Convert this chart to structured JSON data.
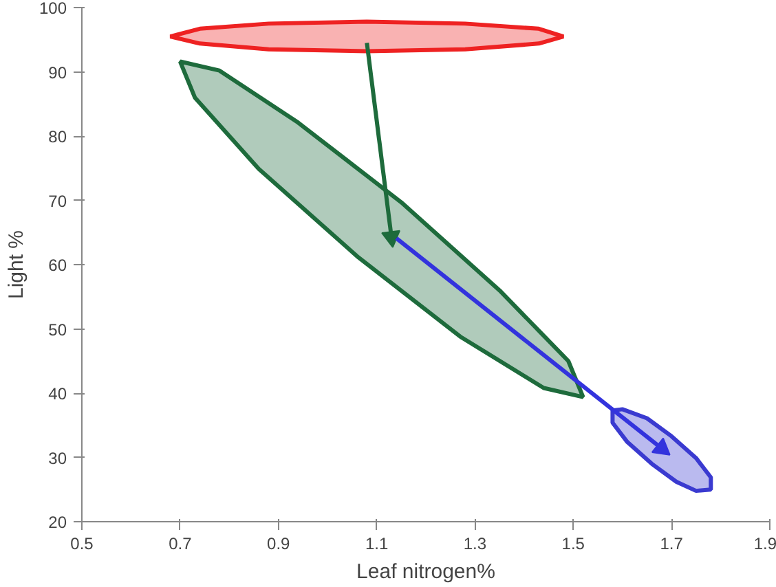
{
  "chart_data": {
    "type": "area",
    "xlabel": "Leaf nitrogen%",
    "ylabel": "Light %",
    "xlim": [
      0.5,
      1.9
    ],
    "xticks": [
      0.5,
      0.7,
      0.9,
      1.1,
      1.3,
      1.5,
      1.7,
      1.9
    ],
    "ylim": [
      20,
      100
    ],
    "yticks": [
      20,
      30,
      40,
      50,
      60,
      70,
      80,
      90,
      100
    ],
    "grid": false,
    "series": [
      {
        "color": "#ee2222",
        "x": [
          1.48,
          1.43,
          1.28,
          1.08,
          0.88,
          0.74,
          0.68,
          0.74,
          0.88,
          1.08,
          1.28,
          1.43
        ],
        "values": [
          95.5,
          96.7,
          97.5,
          97.8,
          97.5,
          96.7,
          95.5,
          94.4,
          93.5,
          93.2,
          93.5,
          94.4
        ]
      },
      {
        "color": "#1e6b3c",
        "x": [
          1.52,
          1.44,
          1.27,
          1.06,
          0.86,
          0.73,
          0.7,
          0.78,
          0.94,
          1.15,
          1.35,
          1.49
        ],
        "values": [
          39.4,
          40.8,
          48.8,
          61.3,
          74.9,
          86.0,
          91.6,
          90.2,
          82.1,
          69.7,
          56.0,
          45.0
        ]
      },
      {
        "color": "#3a3ad0",
        "x": [
          1.78,
          1.75,
          1.71,
          1.66,
          1.61,
          1.58,
          1.58,
          1.6,
          1.65,
          1.7,
          1.75,
          1.78
        ],
        "values": [
          25.0,
          24.8,
          26.2,
          29.0,
          32.4,
          35.4,
          37.3,
          37.5,
          36.1,
          33.3,
          29.9,
          26.9
        ]
      },
      {
        "type": "line",
        "color": "#1e6b3c",
        "x": [
          1.08,
          1.13
        ],
        "values": [
          94.5,
          64.3
        ]
      },
      {
        "type": "line",
        "color": "#3333dd",
        "x": [
          1.14,
          1.68
        ],
        "values": [
          64.1,
          31.4
        ]
      }
    ]
  }
}
